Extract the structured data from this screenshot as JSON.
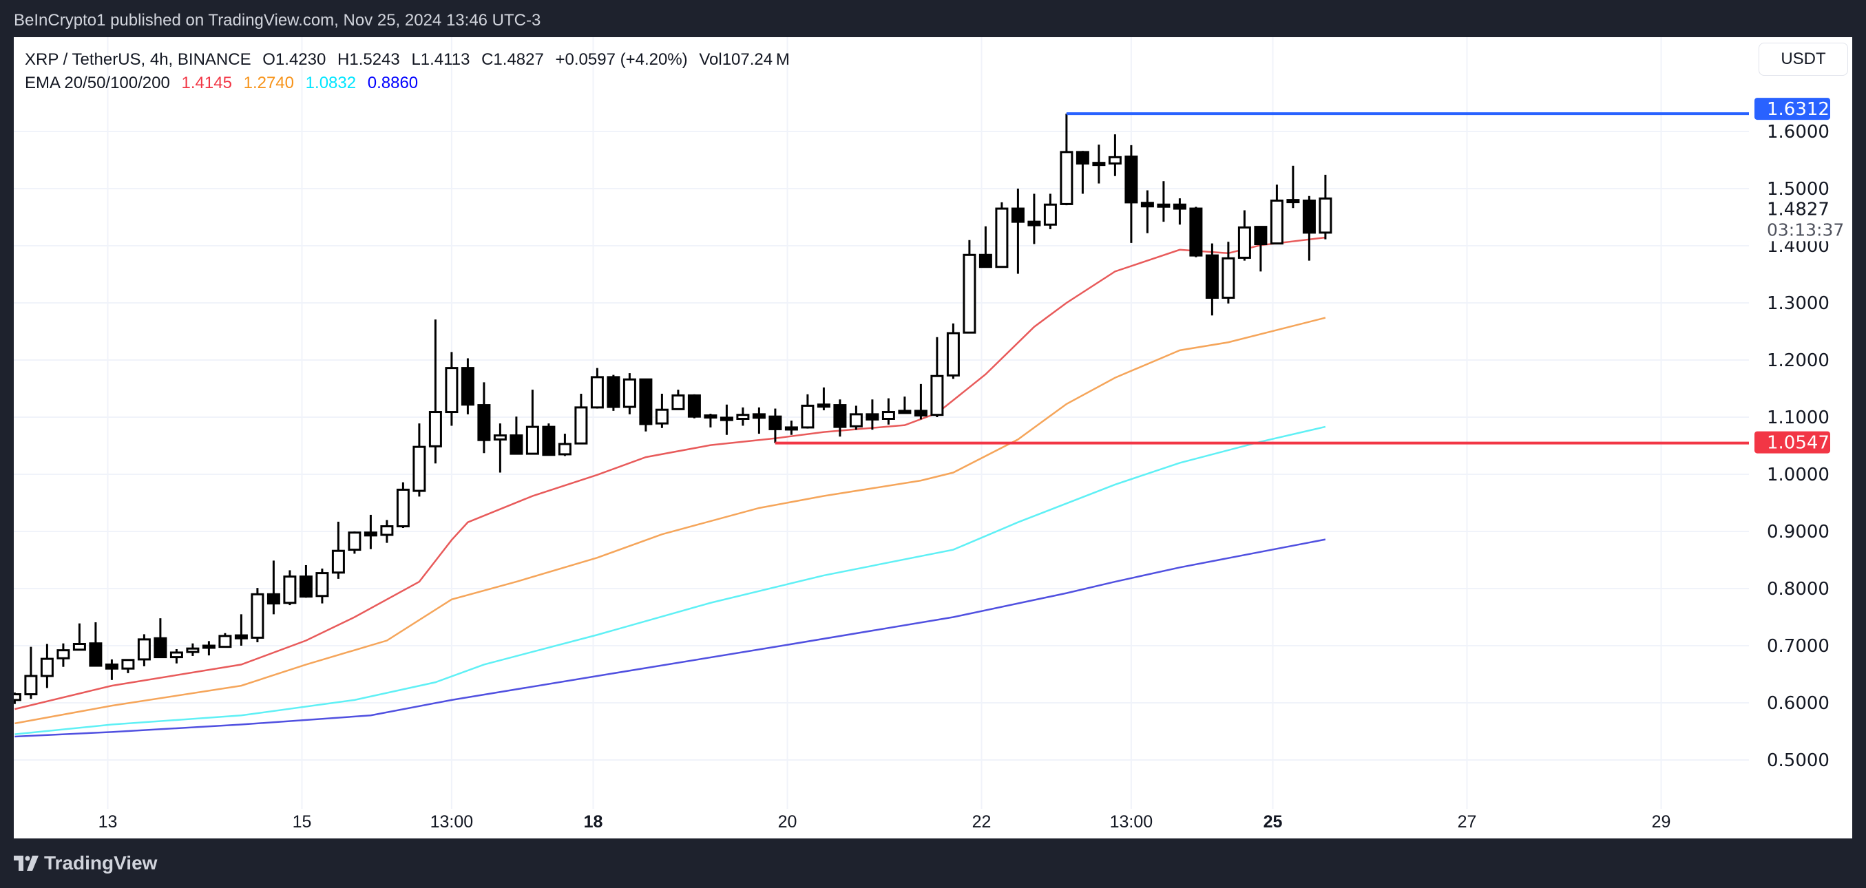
{
  "header": {
    "published": "BeInCrypto1 published on TradingView.com, Nov 25, 2024 13:46 UTC-3"
  },
  "legend": {
    "symbol": "XRP / TetherUS, 4h, BINANCE",
    "open": "O1.4230",
    "high": "H1.5243",
    "low": "L1.4113",
    "close": "C1.4827",
    "change": "+0.0597 (+4.20%)",
    "volume": "Vol107.24 M",
    "ema_label": "EMA 20/50/100/200",
    "ema_values": [
      "1.4145",
      "1.2740",
      "1.0832",
      "0.8860"
    ],
    "ema_colors": [
      "#f23645",
      "#f7931a",
      "#00e5ff",
      "#0000ff"
    ]
  },
  "currency_button": "USDT",
  "footer": {
    "logo_text": "TradingView"
  },
  "chart_data": {
    "type": "candlestick",
    "interval": "4h",
    "first_candle": "11-12 01:00",
    "ylim": [
      0.45,
      1.65
    ],
    "y_ticks": [
      "1.6000",
      "1.5000",
      "1.4000",
      "1.3000",
      "1.2000",
      "1.1000",
      "1.0000",
      "0.9000",
      "0.8000",
      "0.7000",
      "0.6000",
      "0.5000"
    ],
    "x_ticks": [
      {
        "label": "13",
        "t": "11-13 00:00",
        "bold": false
      },
      {
        "label": "15",
        "t": "11-15 00:00",
        "bold": false
      },
      {
        "label": "13:00",
        "t": "11-16 13:00",
        "bold": false
      },
      {
        "label": "18",
        "t": "11-18 00:00",
        "bold": true
      },
      {
        "label": "20",
        "t": "11-20 00:00",
        "bold": false
      },
      {
        "label": "22",
        "t": "11-22 00:00",
        "bold": false
      },
      {
        "label": "13:00",
        "t": "11-23 13:00",
        "bold": false
      },
      {
        "label": "25",
        "t": "11-25 00:00",
        "bold": true
      },
      {
        "label": "27",
        "t": "11-27 00:00",
        "bold": false
      },
      {
        "label": "29",
        "t": "11-29 00:00",
        "bold": false
      }
    ],
    "ohlc": [
      [
        0.605,
        0.618,
        0.598,
        0.615
      ],
      [
        0.615,
        0.698,
        0.607,
        0.647
      ],
      [
        0.647,
        0.703,
        0.626,
        0.677
      ],
      [
        0.678,
        0.704,
        0.663,
        0.692
      ],
      [
        0.693,
        0.739,
        0.693,
        0.703
      ],
      [
        0.704,
        0.741,
        0.665,
        0.665
      ],
      [
        0.667,
        0.676,
        0.64,
        0.66
      ],
      [
        0.66,
        0.676,
        0.652,
        0.675
      ],
      [
        0.676,
        0.72,
        0.664,
        0.711
      ],
      [
        0.713,
        0.748,
        0.679,
        0.68
      ],
      [
        0.68,
        0.694,
        0.669,
        0.688
      ],
      [
        0.689,
        0.704,
        0.682,
        0.695
      ],
      [
        0.699,
        0.708,
        0.683,
        0.7
      ],
      [
        0.698,
        0.722,
        0.698,
        0.717
      ],
      [
        0.718,
        0.755,
        0.7,
        0.713
      ],
      [
        0.714,
        0.801,
        0.706,
        0.79
      ],
      [
        0.79,
        0.849,
        0.755,
        0.774
      ],
      [
        0.775,
        0.832,
        0.771,
        0.821
      ],
      [
        0.821,
        0.841,
        0.784,
        0.786
      ],
      [
        0.787,
        0.835,
        0.774,
        0.827
      ],
      [
        0.828,
        0.917,
        0.817,
        0.866
      ],
      [
        0.868,
        0.9,
        0.861,
        0.898
      ],
      [
        0.898,
        0.929,
        0.869,
        0.893
      ],
      [
        0.894,
        0.92,
        0.88,
        0.909
      ],
      [
        0.909,
        0.986,
        0.906,
        0.973
      ],
      [
        0.971,
        1.089,
        0.961,
        1.048
      ],
      [
        1.049,
        1.271,
        1.019,
        1.109
      ],
      [
        1.109,
        1.214,
        1.085,
        1.186
      ],
      [
        1.186,
        1.203,
        1.105,
        1.122
      ],
      [
        1.121,
        1.161,
        1.037,
        1.06
      ],
      [
        1.061,
        1.089,
        1.003,
        1.068
      ],
      [
        1.068,
        1.101,
        1.036,
        1.036
      ],
      [
        1.036,
        1.148,
        1.036,
        1.083
      ],
      [
        1.083,
        1.089,
        1.033,
        1.034
      ],
      [
        1.035,
        1.071,
        1.032,
        1.053
      ],
      [
        1.054,
        1.141,
        1.053,
        1.117
      ],
      [
        1.117,
        1.186,
        1.115,
        1.17
      ],
      [
        1.17,
        1.174,
        1.111,
        1.118
      ],
      [
        1.118,
        1.177,
        1.105,
        1.166
      ],
      [
        1.166,
        1.166,
        1.075,
        1.088
      ],
      [
        1.089,
        1.141,
        1.081,
        1.113
      ],
      [
        1.114,
        1.148,
        1.113,
        1.138
      ],
      [
        1.138,
        1.14,
        1.098,
        1.101
      ],
      [
        1.102,
        1.106,
        1.082,
        1.103
      ],
      [
        1.099,
        1.122,
        1.069,
        1.095
      ],
      [
        1.097,
        1.117,
        1.085,
        1.104
      ],
      [
        1.105,
        1.117,
        1.071,
        1.099
      ],
      [
        1.101,
        1.115,
        1.0547,
        1.079
      ],
      [
        1.082,
        1.094,
        1.069,
        1.079
      ],
      [
        1.082,
        1.14,
        1.08,
        1.12
      ],
      [
        1.122,
        1.152,
        1.112,
        1.122
      ],
      [
        1.121,
        1.131,
        1.066,
        1.083
      ],
      [
        1.084,
        1.12,
        1.078,
        1.105
      ],
      [
        1.105,
        1.131,
        1.078,
        1.096
      ],
      [
        1.097,
        1.133,
        1.087,
        1.109
      ],
      [
        1.111,
        1.136,
        1.108,
        1.11
      ],
      [
        1.111,
        1.158,
        1.096,
        1.103
      ],
      [
        1.104,
        1.24,
        1.1,
        1.172
      ],
      [
        1.173,
        1.264,
        1.167,
        1.247
      ],
      [
        1.248,
        1.41,
        1.248,
        1.384
      ],
      [
        1.384,
        1.434,
        1.362,
        1.363
      ],
      [
        1.363,
        1.476,
        1.363,
        1.465
      ],
      [
        1.465,
        1.5,
        1.351,
        1.442
      ],
      [
        1.442,
        1.491,
        1.403,
        1.436
      ],
      [
        1.437,
        1.491,
        1.429,
        1.472
      ],
      [
        1.473,
        1.6312,
        1.471,
        1.564
      ],
      [
        1.564,
        1.566,
        1.491,
        1.544
      ],
      [
        1.544,
        1.577,
        1.509,
        1.545
      ],
      [
        1.544,
        1.595,
        1.522,
        1.555
      ],
      [
        1.556,
        1.576,
        1.405,
        1.476
      ],
      [
        1.475,
        1.497,
        1.422,
        1.469
      ],
      [
        1.472,
        1.513,
        1.442,
        1.469
      ],
      [
        1.472,
        1.483,
        1.437,
        1.465
      ],
      [
        1.465,
        1.468,
        1.38,
        1.383
      ],
      [
        1.383,
        1.404,
        1.278,
        1.309
      ],
      [
        1.309,
        1.407,
        1.299,
        1.378
      ],
      [
        1.379,
        1.462,
        1.374,
        1.432
      ],
      [
        1.433,
        1.433,
        1.355,
        1.403
      ],
      [
        1.404,
        1.507,
        1.403,
        1.479
      ],
      [
        1.48,
        1.54,
        1.466,
        1.479
      ],
      [
        1.479,
        1.487,
        1.374,
        1.423
      ],
      [
        1.423,
        1.5243,
        1.4113,
        1.4827
      ]
    ],
    "emas": [
      {
        "name": "EMA 20",
        "color": "#e85a5a",
        "points": [
          [
            "11-12 01:00",
            0.589
          ],
          [
            "11-13 01:00",
            0.63
          ],
          [
            "11-14 09:00",
            0.667
          ],
          [
            "11-15 01:00",
            0.709
          ],
          [
            "11-15 13:00",
            0.75
          ],
          [
            "11-16 05:00",
            0.812
          ],
          [
            "11-16 13:00",
            0.885
          ],
          [
            "11-16 17:00",
            0.916
          ],
          [
            "11-17 09:00",
            0.962
          ],
          [
            "11-18 01:00",
            0.999
          ],
          [
            "11-18 13:00",
            1.03
          ],
          [
            "11-19 05:00",
            1.051
          ],
          [
            "11-19 21:00",
            1.063
          ],
          [
            "11-20 09:00",
            1.074
          ],
          [
            "11-21 05:00",
            1.086
          ],
          [
            "11-21 13:00",
            1.107
          ],
          [
            "11-22 01:00",
            1.175
          ],
          [
            "11-22 13:00",
            1.258
          ],
          [
            "11-22 21:00",
            1.3
          ],
          [
            "11-23 09:00",
            1.355
          ],
          [
            "11-24 01:00",
            1.393
          ],
          [
            "11-24 13:00",
            1.387
          ],
          [
            "11-24 21:00",
            1.401
          ],
          [
            "11-25 13:00",
            1.4145
          ]
        ]
      },
      {
        "name": "EMA 50",
        "color": "#f5a55a",
        "points": [
          [
            "11-12 01:00",
            0.564
          ],
          [
            "11-13 01:00",
            0.595
          ],
          [
            "11-14 09:00",
            0.63
          ],
          [
            "11-15 01:00",
            0.667
          ],
          [
            "11-15 21:00",
            0.709
          ],
          [
            "11-16 13:00",
            0.781
          ],
          [
            "11-17 05:00",
            0.812
          ],
          [
            "11-18 01:00",
            0.854
          ],
          [
            "11-18 17:00",
            0.895
          ],
          [
            "11-19 17:00",
            0.941
          ],
          [
            "11-20 09:00",
            0.962
          ],
          [
            "11-21 09:00",
            0.989
          ],
          [
            "11-21 17:00",
            1.003
          ],
          [
            "11-22 09:00",
            1.061
          ],
          [
            "11-22 21:00",
            1.123
          ],
          [
            "11-23 09:00",
            1.169
          ],
          [
            "11-24 01:00",
            1.217
          ],
          [
            "11-24 13:00",
            1.231
          ],
          [
            "11-25 13:00",
            1.274
          ]
        ]
      },
      {
        "name": "EMA 100",
        "color": "#5ff0f5",
        "points": [
          [
            "11-12 01:00",
            0.545
          ],
          [
            "11-13 01:00",
            0.562
          ],
          [
            "11-14 09:00",
            0.578
          ],
          [
            "11-15 13:00",
            0.605
          ],
          [
            "11-16 09:00",
            0.636
          ],
          [
            "11-16 21:00",
            0.667
          ],
          [
            "11-18 01:00",
            0.719
          ],
          [
            "11-19 05:00",
            0.775
          ],
          [
            "11-20 09:00",
            0.823
          ],
          [
            "11-21 17:00",
            0.868
          ],
          [
            "11-22 09:00",
            0.916
          ],
          [
            "11-23 09:00",
            0.982
          ],
          [
            "11-24 01:00",
            1.02
          ],
          [
            "11-24 21:00",
            1.057
          ],
          [
            "11-25 13:00",
            1.0832
          ]
        ]
      },
      {
        "name": "EMA 200",
        "color": "#5050e0",
        "points": [
          [
            "11-12 01:00",
            0.541
          ],
          [
            "11-13 01:00",
            0.549
          ],
          [
            "11-14 09:00",
            0.562
          ],
          [
            "11-15 17:00",
            0.578
          ],
          [
            "11-16 13:00",
            0.605
          ],
          [
            "11-18 01:00",
            0.647
          ],
          [
            "11-19 21:00",
            0.698
          ],
          [
            "11-21 17:00",
            0.75
          ],
          [
            "11-22 21:00",
            0.792
          ],
          [
            "11-23 09:00",
            0.812
          ],
          [
            "11-24 01:00",
            0.837
          ],
          [
            "11-25 13:00",
            0.886
          ]
        ]
      }
    ],
    "levels": [
      {
        "label": "1.6312",
        "value": 1.6312,
        "from": "11-22 21:00",
        "color": "#2962ff"
      },
      {
        "label": "1.0547",
        "value": 1.0547,
        "from": "11-19 21:00",
        "color": "#f23645"
      }
    ],
    "last_price": {
      "label": "1.4827",
      "countdown": "03:13:37"
    }
  }
}
